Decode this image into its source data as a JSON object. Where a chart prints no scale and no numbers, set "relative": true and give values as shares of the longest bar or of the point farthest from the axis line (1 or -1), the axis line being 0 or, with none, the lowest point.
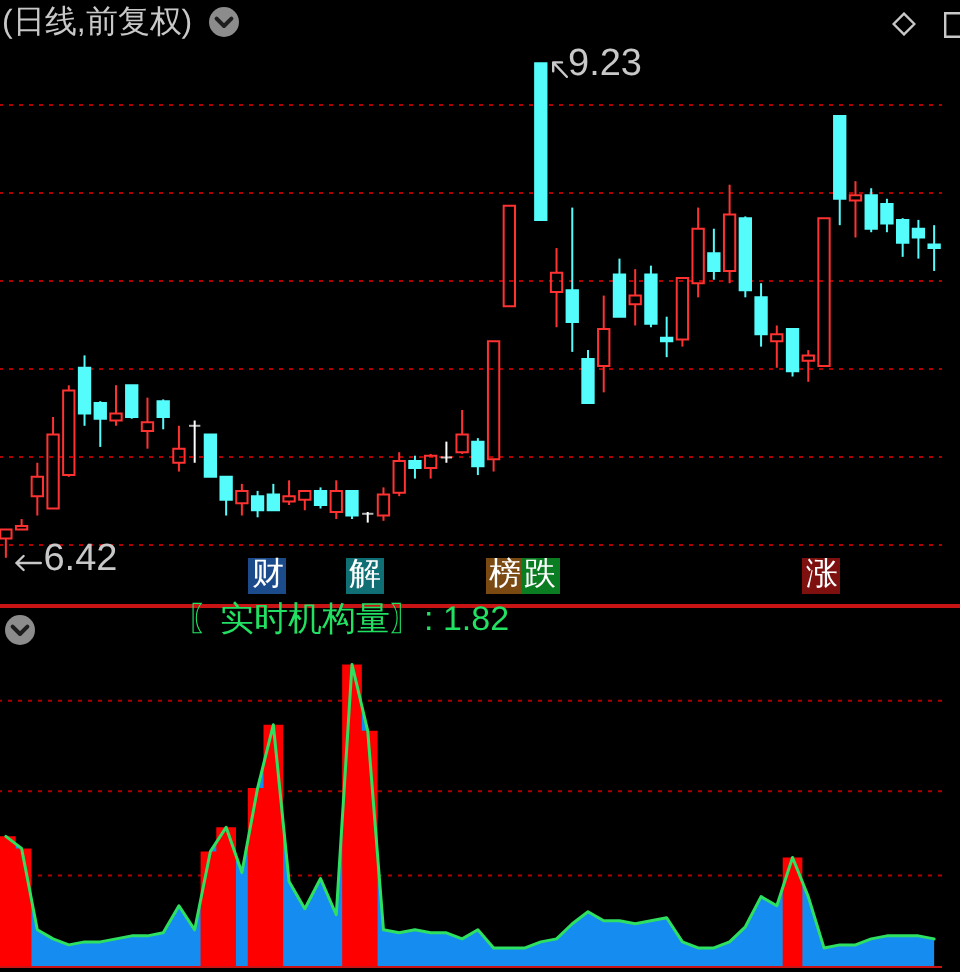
{
  "chart_data": [
    {
      "type": "candlestick",
      "title": "(日线,前复权)",
      "categories": [
        null,
        null,
        null,
        null,
        null,
        null,
        null,
        null,
        null,
        null,
        null,
        null,
        null,
        null,
        null,
        null,
        null,
        null,
        null,
        null,
        null,
        null,
        null,
        null,
        null,
        null,
        null,
        null,
        null,
        null,
        null,
        null,
        null,
        null,
        null,
        null,
        null,
        null,
        null,
        null,
        null,
        null,
        null,
        null,
        null,
        null,
        null,
        null,
        null,
        null,
        null,
        null,
        null,
        null,
        null,
        null,
        null,
        null,
        null,
        null
      ],
      "ohlc": [
        [
          6.53,
          6.58,
          6.42,
          6.58
        ],
        [
          6.58,
          6.64,
          6.58,
          6.6
        ],
        [
          6.77,
          6.96,
          6.66,
          6.88
        ],
        [
          6.7,
          7.22,
          6.7,
          7.12
        ],
        [
          6.89,
          7.4,
          6.88,
          7.37
        ],
        [
          7.5,
          7.57,
          7.17,
          7.24
        ],
        [
          7.3,
          7.31,
          7.05,
          7.21
        ],
        [
          7.2,
          7.4,
          7.17,
          7.24
        ],
        [
          7.4,
          7.4,
          7.21,
          7.22
        ],
        [
          7.14,
          7.33,
          7.04,
          7.19
        ],
        [
          7.31,
          7.32,
          7.15,
          7.22
        ],
        [
          6.96,
          7.17,
          6.91,
          7.04
        ],
        [
          7.17,
          7.2,
          6.96,
          7.17
        ],
        [
          7.12,
          7.12,
          6.88,
          6.88
        ],
        [
          6.88,
          6.88,
          6.66,
          6.75
        ],
        [
          6.73,
          6.84,
          6.66,
          6.8
        ],
        [
          6.77,
          6.8,
          6.65,
          6.69
        ],
        [
          6.78,
          6.84,
          6.69,
          6.69
        ],
        [
          6.74,
          6.86,
          6.72,
          6.77
        ],
        [
          6.75,
          6.8,
          6.69,
          6.8
        ],
        [
          6.8,
          6.82,
          6.7,
          6.72
        ],
        [
          6.68,
          6.86,
          6.64,
          6.8
        ],
        [
          6.8,
          6.8,
          6.64,
          6.66
        ],
        [
          6.67,
          6.68,
          6.62,
          6.67
        ],
        [
          6.66,
          6.82,
          6.63,
          6.78
        ],
        [
          6.79,
          7.02,
          6.77,
          6.97
        ],
        [
          6.97,
          7.0,
          6.87,
          6.93
        ],
        [
          6.93,
          7.01,
          6.87,
          7.0
        ],
        [
          6.99,
          7.08,
          6.96,
          6.99
        ],
        [
          7.02,
          7.26,
          7.01,
          7.12
        ],
        [
          7.08,
          7.1,
          6.89,
          6.94
        ],
        [
          6.98,
          7.65,
          6.91,
          7.65
        ],
        [
          7.85,
          8.42,
          7.85,
          8.42
        ],
        null,
        [
          9.23,
          9.23,
          8.34,
          8.34
        ],
        [
          7.93,
          8.18,
          7.73,
          8.04
        ],
        [
          7.94,
          8.41,
          7.59,
          7.76
        ],
        [
          7.55,
          7.6,
          7.3,
          7.3
        ],
        [
          7.51,
          7.91,
          7.36,
          7.72
        ],
        [
          8.03,
          8.12,
          7.79,
          7.79
        ],
        [
          7.86,
          8.06,
          7.74,
          7.91
        ],
        [
          8.03,
          8.08,
          7.73,
          7.75
        ],
        [
          7.67,
          7.79,
          7.56,
          7.65
        ],
        [
          7.66,
          8.01,
          7.62,
          8.01
        ],
        [
          7.98,
          8.41,
          7.9,
          8.29
        ],
        [
          8.15,
          8.29,
          8.0,
          8.05
        ],
        [
          8.05,
          8.54,
          7.98,
          8.37
        ],
        [
          8.35,
          8.36,
          7.9,
          7.94
        ],
        [
          7.9,
          7.98,
          7.62,
          7.69
        ],
        [
          7.65,
          7.74,
          7.5,
          7.69
        ],
        [
          7.72,
          7.72,
          7.45,
          7.48
        ],
        [
          7.54,
          7.6,
          7.42,
          7.57
        ],
        [
          7.51,
          8.35,
          7.51,
          8.35
        ],
        [
          8.93,
          8.93,
          8.31,
          8.46
        ],
        [
          8.45,
          8.56,
          8.24,
          8.48
        ],
        [
          8.48,
          8.52,
          8.27,
          8.29
        ],
        [
          8.43,
          8.46,
          8.27,
          8.32
        ],
        [
          8.34,
          8.35,
          8.13,
          8.21
        ],
        [
          8.29,
          8.34,
          8.12,
          8.24
        ],
        [
          8.2,
          8.31,
          8.05,
          8.18
        ]
      ],
      "colors": [
        "#ff3232",
        "#ff3232",
        "#ff3232",
        "#ff3232",
        "#ff3232",
        "#54fcfc",
        "#54fcfc",
        "#ff3232",
        "#54fcfc",
        "#ff3232",
        "#54fcfc",
        "#ff3232",
        "#ffffff",
        "#54fcfc",
        "#54fcfc",
        "#ff3232",
        "#54fcfc",
        "#54fcfc",
        "#ff3232",
        "#ff3232",
        "#54fcfc",
        "#ff3232",
        "#54fcfc",
        "#ffffff",
        "#ff3232",
        "#ff3232",
        "#54fcfc",
        "#ff3232",
        "#ffffff",
        "#ff3232",
        "#54fcfc",
        "#ff3232",
        "#ff3232",
        null,
        "#54fcfc",
        "#ff3232",
        "#54fcfc",
        "#54fcfc",
        "#ff3232",
        "#54fcfc",
        "#ff3232",
        "#54fcfc",
        "#54fcfc",
        "#ff3232",
        "#ff3232",
        "#54fcfc",
        "#ff3232",
        "#54fcfc",
        "#54fcfc",
        "#ff3232",
        "#54fcfc",
        "#ff3232",
        "#ff3232",
        "#54fcfc",
        "#ff3232",
        "#54fcfc",
        "#54fcfc",
        "#54fcfc",
        "#54fcfc",
        "#54fcfc"
      ],
      "yticks": [
        {
          "value": 6.5,
          "label": null
        },
        {
          "value": 7.0,
          "label": null
        },
        {
          "value": 7.5,
          "label": null
        },
        {
          "value": 8.0,
          "label": null
        },
        {
          "value": 8.5,
          "label": null
        },
        {
          "value": 9.0,
          "label": null
        }
      ],
      "grid": "y",
      "annotations": [
        "9.23",
        "6.42",
        "财",
        "解",
        "榜",
        "跌",
        "涨"
      ]
    },
    {
      "type": "area",
      "title": "〖实时机构量〗: 1.82",
      "relative": true,
      "categories": [
        null,
        null,
        null,
        null,
        null,
        null,
        null,
        null,
        null,
        null,
        null,
        null,
        null,
        null,
        null,
        null,
        null,
        null,
        null,
        null,
        null,
        null,
        null,
        null,
        null,
        null,
        null,
        null,
        null,
        null,
        null,
        null,
        null,
        null,
        null,
        null,
        null,
        null,
        null,
        null,
        null,
        null,
        null,
        null,
        null,
        null,
        null,
        null,
        null,
        null,
        null,
        null,
        null,
        null,
        null,
        null,
        null,
        null,
        null,
        null
      ],
      "series": [
        {
          "type": "area",
          "color": "#148cf0",
          "values": [
            0.43,
            0.39,
            0.12,
            0.09,
            0.07,
            0.08,
            0.08,
            0.09,
            0.1,
            0.1,
            0.11,
            0.2,
            0.12,
            0.38,
            0.46,
            0.31,
            0.59,
            0.8,
            0.28,
            0.19,
            0.29,
            0.17,
            1,
            0.78,
            0.12,
            0.11,
            0.12,
            0.11,
            0.11,
            0.09,
            0.12,
            0.06,
            0.06,
            0.06,
            0.08,
            0.09,
            0.14,
            0.18,
            0.15,
            0.15,
            0.14,
            0.15,
            0.16,
            0.08,
            0.06,
            0.06,
            0.08,
            0.13,
            0.23,
            0.2,
            0.36,
            0.23,
            0.06,
            0.07,
            0.07,
            0.09,
            0.1,
            0.1,
            0.1,
            0.09
          ]
        },
        {
          "type": "bar",
          "color": "#ff0000",
          "values": [
            0.43,
            0.39,
            null,
            null,
            null,
            null,
            null,
            null,
            null,
            null,
            null,
            null,
            null,
            0.38,
            0.46,
            null,
            0.59,
            0.8,
            null,
            null,
            null,
            null,
            1,
            0.78,
            null,
            null,
            null,
            null,
            null,
            null,
            null,
            null,
            null,
            null,
            null,
            null,
            null,
            null,
            null,
            null,
            null,
            null,
            null,
            null,
            null,
            null,
            null,
            null,
            null,
            null,
            0.36,
            null,
            null,
            null,
            null,
            null,
            null,
            null,
            null,
            null
          ]
        }
      ],
      "ref_lines": [
        {
          "axis": "y",
          "value": 0.3,
          "color": "#b00000",
          "line_style": "dotted"
        },
        {
          "axis": "y",
          "value": 0.58,
          "color": "#b00000",
          "line_style": "dotted"
        },
        {
          "axis": "y",
          "value": 0.88,
          "color": "#b00000",
          "line_style": "dotted"
        }
      ]
    }
  ]
}
